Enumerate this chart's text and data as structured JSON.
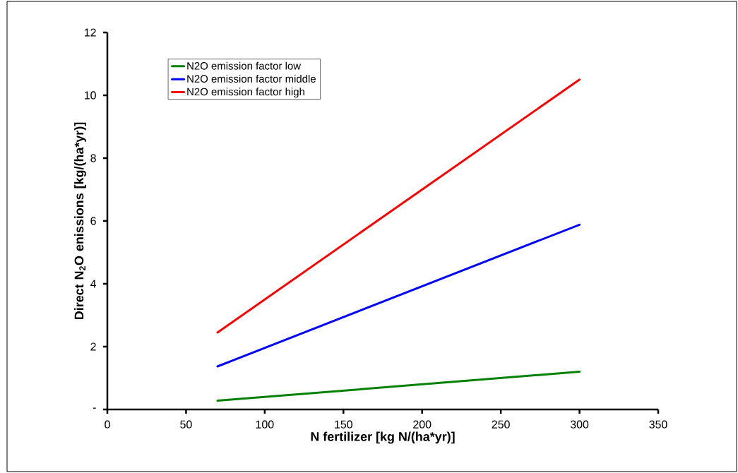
{
  "chart_data": {
    "type": "line",
    "xlabel": "N fertilizer [kg N/(ha*yr)]",
    "ylabel": "Direct N$_{2}$O enissions [kg/(ha*yr)]",
    "x": [
      70,
      300
    ],
    "series": [
      {
        "name": "N2O emission factor low",
        "color": "#008000",
        "values": [
          0.28,
          1.2
        ]
      },
      {
        "name": "N2O emission factor middle",
        "color": "#0000ff",
        "values": [
          1.37,
          5.88
        ]
      },
      {
        "name": "N2O emission factor high",
        "color": "#ff0000",
        "values": [
          2.45,
          10.5
        ]
      }
    ],
    "xlim": [
      0,
      350
    ],
    "ylim": [
      0,
      12
    ],
    "xticks": [
      0,
      50,
      100,
      150,
      200,
      250,
      300,
      350
    ],
    "yticks": [
      {
        "value": 0,
        "label": "-"
      },
      2,
      4,
      6,
      8,
      10,
      12
    ],
    "grid": false,
    "legend": "top left",
    "marker": "none",
    "line_style": "solid"
  }
}
